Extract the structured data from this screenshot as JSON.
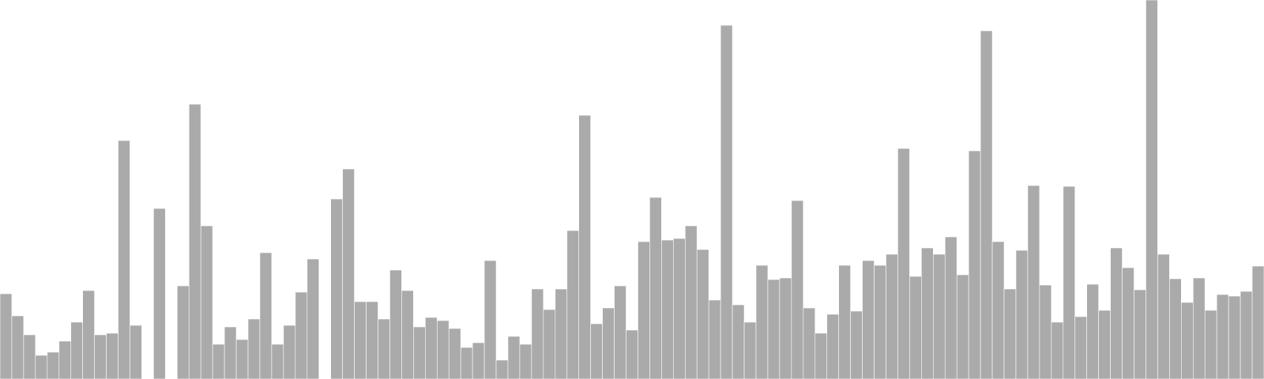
{
  "chart_data": {
    "type": "bar",
    "bar_color": "#aaaaaa",
    "bar_border_color": "#ffffff",
    "background_color": "#ffffff",
    "axes_visible": false,
    "grid": false,
    "ylim": [
      0,
      480
    ],
    "values": [
      108,
      80,
      56,
      30,
      34,
      48,
      72,
      112,
      56,
      58,
      302,
      68,
      0,
      216,
      0,
      118,
      348,
      194,
      44,
      66,
      50,
      76,
      160,
      44,
      68,
      110,
      152,
      0,
      228,
      266,
      98,
      98,
      76,
      138,
      112,
      66,
      78,
      74,
      64,
      40,
      46,
      150,
      24,
      54,
      44,
      114,
      88,
      114,
      188,
      334,
      70,
      90,
      118,
      62,
      174,
      230,
      176,
      178,
      194,
      164,
      100,
      448,
      94,
      72,
      144,
      126,
      128,
      226,
      90,
      58,
      82,
      144,
      86,
      150,
      144,
      158,
      292,
      130,
      166,
      158,
      180,
      132,
      289,
      441,
      174,
      114,
      163,
      245,
      119,
      72,
      244,
      79,
      120,
      87,
      166,
      141,
      113,
      480,
      158,
      127,
      97,
      128,
      87,
      107,
      105,
      111,
      143
    ]
  }
}
